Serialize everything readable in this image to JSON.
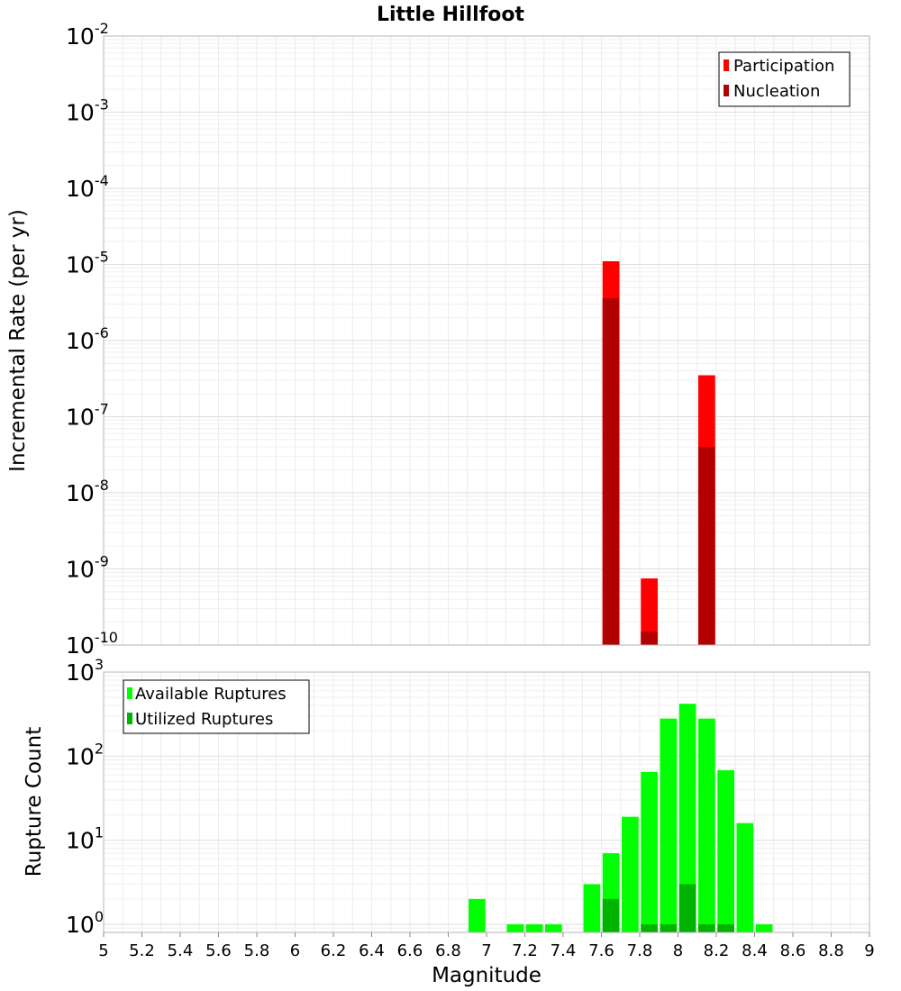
{
  "chart_data": [
    {
      "type": "bar",
      "title": "Little Hillfoot",
      "xlabel": "",
      "ylabel": "Incremental Rate (per yr)",
      "y_scale": "log",
      "ylim": [
        1e-10,
        0.01
      ],
      "xlim": [
        5,
        9
      ],
      "y_tick_labels": [
        {
          "base": "10",
          "exp": "-2",
          "value": 0.01
        },
        {
          "base": "10",
          "exp": "-3",
          "value": 0.001
        },
        {
          "base": "10",
          "exp": "-4",
          "value": 0.0001
        },
        {
          "base": "10",
          "exp": "-5",
          "value": 1e-05
        },
        {
          "base": "10",
          "exp": "-6",
          "value": 1e-06
        },
        {
          "base": "10",
          "exp": "-7",
          "value": 1e-07
        },
        {
          "base": "10",
          "exp": "-8",
          "value": 1e-08
        },
        {
          "base": "10",
          "exp": "-9",
          "value": 1e-09
        },
        {
          "base": "10",
          "exp": "-10",
          "value": 1e-10
        }
      ],
      "grid": true,
      "legend_position": "top-right",
      "legend": [
        {
          "label": "Participation",
          "color": "#ff0000"
        },
        {
          "label": "Nucleation",
          "color": "#b30000"
        }
      ],
      "series": [
        {
          "name": "Participation",
          "color": "#ff0000",
          "x": [
            7.65,
            7.85,
            8.15
          ],
          "values": [
            1.1e-05,
            7.5e-10,
            3.5e-07
          ]
        },
        {
          "name": "Nucleation",
          "color": "#b30000",
          "x": [
            7.65,
            7.85,
            8.15
          ],
          "values": [
            3.6e-06,
            1.5e-10,
            4e-08
          ]
        }
      ]
    },
    {
      "type": "bar",
      "title": "",
      "xlabel": "Magnitude",
      "ylabel": "Rupture Count",
      "y_scale": "log",
      "ylim": [
        0.8,
        1000
      ],
      "xlim": [
        5,
        9
      ],
      "y_tick_labels": [
        {
          "base": "10",
          "exp": "3",
          "value": 1000
        },
        {
          "base": "10",
          "exp": "2",
          "value": 100
        },
        {
          "base": "10",
          "exp": "1",
          "value": 10
        },
        {
          "base": "10",
          "exp": "0",
          "value": 1
        }
      ],
      "x_tick_labels": [
        "5",
        "5.2",
        "5.4",
        "5.6",
        "5.8",
        "6",
        "6.2",
        "6.4",
        "6.6",
        "6.8",
        "7",
        "7.2",
        "7.4",
        "7.6",
        "7.8",
        "8",
        "8.2",
        "8.4",
        "8.6",
        "8.8",
        "9"
      ],
      "grid": true,
      "legend_position": "top-left",
      "legend": [
        {
          "label": "Available Ruptures",
          "color": "#00ff00"
        },
        {
          "label": "Utilized Ruptures",
          "color": "#00b300"
        }
      ],
      "series": [
        {
          "name": "Available Ruptures",
          "color": "#00ff00",
          "x": [
            6.95,
            7.15,
            7.25,
            7.35,
            7.55,
            7.65,
            7.75,
            7.85,
            7.95,
            8.05,
            8.15,
            8.25,
            8.35,
            8.45
          ],
          "values": [
            2,
            1,
            1,
            1,
            3,
            7,
            19,
            65,
            280,
            420,
            280,
            68,
            16,
            1
          ]
        },
        {
          "name": "Utilized Ruptures",
          "color": "#00b300",
          "x": [
            7.65,
            7.85,
            7.95,
            8.05,
            8.15,
            8.25
          ],
          "values": [
            2,
            1,
            1,
            3,
            1,
            1
          ]
        }
      ]
    }
  ]
}
